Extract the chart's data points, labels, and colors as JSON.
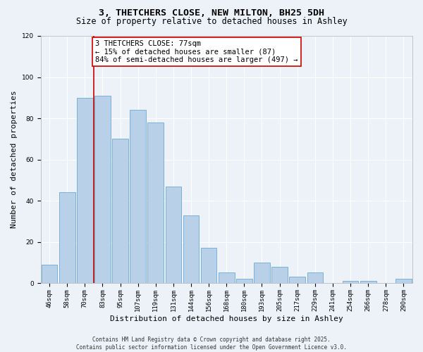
{
  "title": "3, THETCHERS CLOSE, NEW MILTON, BH25 5DH",
  "subtitle": "Size of property relative to detached houses in Ashley",
  "xlabel": "Distribution of detached houses by size in Ashley",
  "ylabel": "Number of detached properties",
  "bin_labels": [
    "46sqm",
    "58sqm",
    "70sqm",
    "83sqm",
    "95sqm",
    "107sqm",
    "119sqm",
    "131sqm",
    "144sqm",
    "156sqm",
    "168sqm",
    "180sqm",
    "193sqm",
    "205sqm",
    "217sqm",
    "229sqm",
    "241sqm",
    "254sqm",
    "266sqm",
    "278sqm",
    "290sqm"
  ],
  "bar_heights": [
    9,
    44,
    90,
    91,
    70,
    84,
    78,
    47,
    33,
    17,
    5,
    2,
    10,
    8,
    3,
    5,
    0,
    1,
    1,
    0,
    2
  ],
  "bar_color": "#b8d0e8",
  "bar_edge_color": "#6aaad4",
  "vline_x_index": 2.5,
  "vline_color": "#cc0000",
  "annotation_text": "3 THETCHERS CLOSE: 77sqm\n← 15% of detached houses are smaller (87)\n84% of semi-detached houses are larger (497) →",
  "annotation_box_color": "#ffffff",
  "annotation_box_edge_color": "#cc0000",
  "ylim": [
    0,
    120
  ],
  "yticks": [
    0,
    20,
    40,
    60,
    80,
    100,
    120
  ],
  "background_color": "#edf2f9",
  "grid_color": "#ffffff",
  "footer_text": "Contains HM Land Registry data © Crown copyright and database right 2025.\nContains public sector information licensed under the Open Government Licence v3.0.",
  "title_fontsize": 9.5,
  "subtitle_fontsize": 8.5,
  "axis_label_fontsize": 8,
  "tick_fontsize": 6.5,
  "annotation_fontsize": 7.5,
  "footer_fontsize": 5.5
}
